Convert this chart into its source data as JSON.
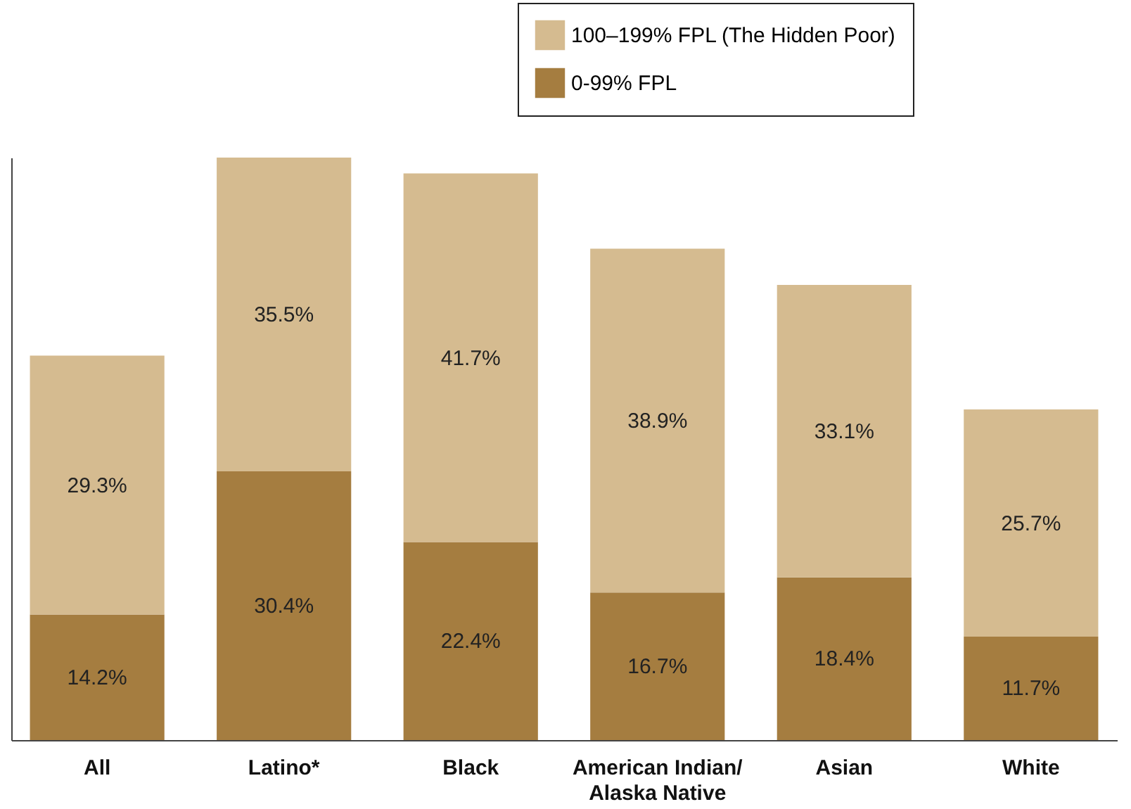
{
  "chart_data": {
    "type": "bar",
    "stacked": true,
    "legend": "top right",
    "tick_labels": "x",
    "grid": false,
    "categories": [
      "All",
      "Latino*",
      "Black",
      "American Indian/ Alaska Native",
      "Asian",
      "White"
    ],
    "series": [
      {
        "name": "0-99% FPL",
        "color": "#a57d40",
        "values": [
          14.2,
          30.4,
          22.4,
          16.7,
          18.4,
          11.7
        ],
        "value_labels": [
          "14.2%",
          "30.4%",
          "22.4%",
          "16.7%",
          "18.4%",
          "11.7%"
        ]
      },
      {
        "name": "100–199% FPL (The Hidden Poor)",
        "color": "#d5bb90",
        "values": [
          29.3,
          35.5,
          41.7,
          38.9,
          33.1,
          25.7
        ],
        "value_labels": [
          "29.3%",
          "35.5%",
          "41.7%",
          "38.9%",
          "33.1%",
          "25.7%"
        ]
      }
    ]
  }
}
